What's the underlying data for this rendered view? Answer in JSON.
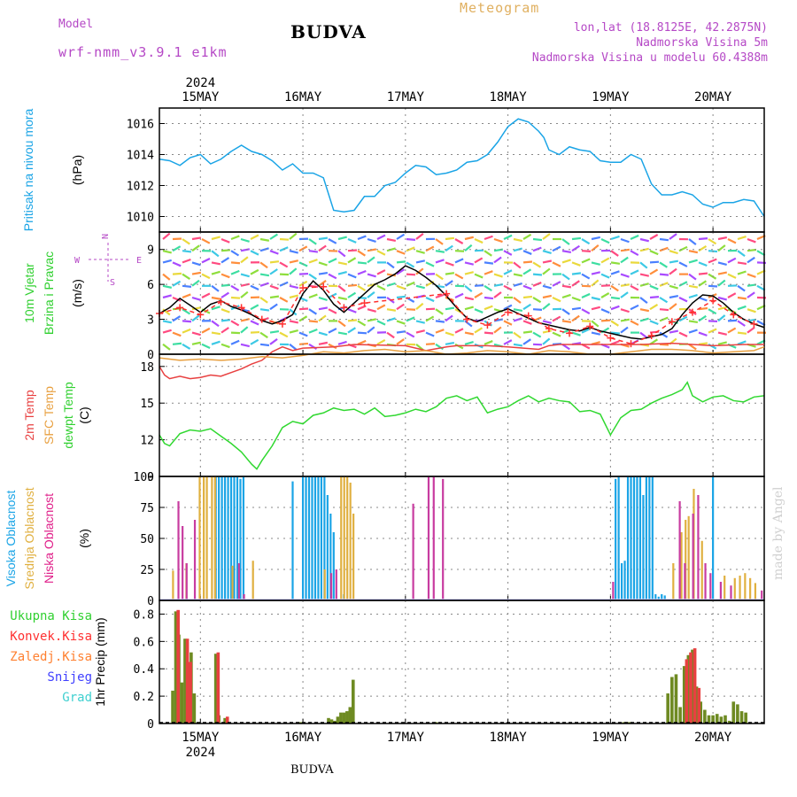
{
  "header": {
    "model_label": "Model",
    "model_name": "wrf-nmm_v3.9.1 e1km",
    "station": "BUDVA",
    "chart_title": "Meteogram",
    "coords": "lon,lat (18.8125E, 42.2875N)",
    "altitude": "Nadmorska Visina 5m",
    "model_altitude": "Nadmorska Visina u modelu 60.4388m"
  },
  "footer": {
    "station": "BUDVA",
    "credit": "made by Angel"
  },
  "chart_data": [
    {
      "id": "pressure",
      "type": "line",
      "ylabel_lines": [
        "Pritisak na nivou mora"
      ],
      "unit": "(hPa)",
      "ylim": [
        1009,
        1017
      ],
      "yticks": [
        1010,
        1012,
        1014,
        1016
      ],
      "x_range": [
        14.6,
        20.5
      ],
      "x_ticks": [
        "15MAY",
        "16MAY",
        "17MAY",
        "18MAY",
        "19MAY",
        "20MAY"
      ],
      "year": "2024",
      "series": [
        {
          "color": "#1aa4e6",
          "x": [
            14.6,
            14.7,
            14.8,
            14.9,
            15.0,
            15.1,
            15.2,
            15.3,
            15.4,
            15.5,
            15.6,
            15.7,
            15.8,
            15.9,
            16.0,
            16.1,
            16.2,
            16.3,
            16.4,
            16.5,
            16.6,
            16.7,
            16.8,
            16.9,
            17.0,
            17.1,
            17.2,
            17.3,
            17.4,
            17.5,
            17.6,
            17.7,
            17.8,
            17.9,
            18.0,
            18.1,
            18.2,
            18.3,
            18.35,
            18.4,
            18.5,
            18.6,
            18.7,
            18.8,
            18.9,
            19.0,
            19.1,
            19.2,
            19.3,
            19.4,
            19.5,
            19.6,
            19.7,
            19.8,
            19.9,
            20.0,
            20.1,
            20.2,
            20.3,
            20.4,
            20.5
          ],
          "y": [
            1013.7,
            1013.6,
            1013.3,
            1013.8,
            1014.0,
            1013.4,
            1013.7,
            1014.2,
            1014.6,
            1014.2,
            1014.0,
            1013.6,
            1013.0,
            1013.4,
            1012.8,
            1012.8,
            1012.5,
            1010.4,
            1010.3,
            1010.4,
            1011.3,
            1011.3,
            1012.0,
            1012.2,
            1012.8,
            1013.3,
            1013.2,
            1012.7,
            1012.8,
            1013.0,
            1013.5,
            1013.6,
            1014.0,
            1014.8,
            1015.8,
            1016.3,
            1016.1,
            1015.5,
            1015.1,
            1014.3,
            1014.0,
            1014.5,
            1014.3,
            1014.2,
            1013.6,
            1013.5,
            1013.5,
            1014.0,
            1013.7,
            1012.1,
            1011.4,
            1011.4,
            1011.6,
            1011.4,
            1010.8,
            1010.6,
            1010.9,
            1010.9,
            1011.1,
            1011.0,
            1010.0
          ]
        }
      ]
    },
    {
      "id": "wind",
      "type": "line",
      "ylabel_lines": [
        "10m Vjetar",
        "Brzina i Pravac"
      ],
      "unit": "(m/s)",
      "compass": "N, E, S, W",
      "ylim": [
        0,
        10.5
      ],
      "yticks": [
        0,
        3,
        6,
        9
      ],
      "x_range": [
        14.6,
        20.5
      ],
      "series": [
        {
          "name": "speed",
          "color": "#000000",
          "x": [
            14.6,
            14.7,
            14.8,
            14.9,
            15.0,
            15.1,
            15.2,
            15.3,
            15.4,
            15.5,
            15.6,
            15.7,
            15.8,
            15.9,
            16.0,
            16.1,
            16.2,
            16.3,
            16.4,
            16.5,
            16.6,
            16.7,
            16.8,
            16.9,
            17.0,
            17.1,
            17.2,
            17.3,
            17.4,
            17.5,
            17.6,
            17.7,
            17.8,
            17.9,
            18.0,
            18.1,
            18.2,
            18.3,
            18.4,
            18.5,
            18.6,
            18.7,
            18.8,
            18.9,
            19.0,
            19.1,
            19.2,
            19.3,
            19.4,
            19.5,
            19.6,
            19.7,
            19.8,
            19.9,
            20.0,
            20.1,
            20.2,
            20.3,
            20.4,
            20.5
          ],
          "y": [
            3.5,
            4.0,
            4.8,
            4.2,
            3.6,
            4.3,
            4.6,
            4.1,
            3.8,
            3.4,
            2.9,
            2.6,
            2.9,
            3.4,
            5.2,
            6.3,
            5.5,
            4.3,
            3.6,
            4.4,
            5.2,
            6.0,
            6.4,
            6.9,
            7.6,
            7.2,
            6.6,
            5.9,
            5.0,
            4.0,
            3.1,
            2.8,
            3.2,
            3.6,
            3.9,
            3.5,
            3.1,
            2.7,
            2.5,
            2.3,
            2.1,
            2.0,
            2.3,
            2.0,
            1.8,
            1.6,
            1.4,
            1.3,
            1.5,
            1.7,
            2.2,
            3.4,
            4.4,
            5.1,
            5.0,
            4.4,
            3.6,
            3.0,
            2.6,
            2.3
          ]
        },
        {
          "name": "gust",
          "color": "#ff3030",
          "x": [
            14.6,
            14.8,
            15.0,
            15.2,
            15.4,
            15.6,
            15.8,
            16.0,
            16.2,
            16.4,
            16.6,
            17.4,
            17.6,
            17.8,
            18.0,
            18.2,
            18.4,
            18.6,
            18.8,
            19.0,
            19.2,
            19.4,
            19.6,
            19.8,
            20.0,
            20.2,
            20.4
          ],
          "y": [
            3.5,
            4.0,
            3.4,
            4.5,
            4.0,
            3.0,
            2.6,
            5.7,
            5.8,
            4.0,
            4.4,
            5.2,
            3.0,
            2.5,
            3.6,
            3.3,
            2.2,
            1.8,
            2.4,
            1.4,
            0.9,
            1.6,
            2.8,
            3.6,
            4.6,
            3.4,
            2.6
          ]
        }
      ]
    },
    {
      "id": "temperature",
      "type": "line",
      "ylabel_lines": [
        "2m Temp",
        "SFC Temp",
        "dewpt Temp"
      ],
      "unit": "(C)",
      "ylim": [
        9,
        19
      ],
      "yticks": [
        9,
        12,
        15,
        18
      ],
      "x_range": [
        14.6,
        20.5
      ],
      "series": [
        {
          "name": "2m Temp",
          "color": "#e84040",
          "x": [
            14.6,
            14.65,
            14.7,
            14.8,
            14.9,
            15.0,
            15.1,
            15.2,
            15.3,
            15.4,
            15.5,
            15.6,
            15.7,
            15.8,
            15.9,
            16.0,
            16.3,
            16.5,
            17.0,
            17.2,
            17.4,
            17.5,
            17.8,
            18.0,
            18.3,
            18.4,
            18.5,
            19.0,
            19.3,
            19.6,
            20.0,
            20.3,
            20.5
          ],
          "y": [
            18.0,
            17.3,
            17.0,
            17.2,
            17.0,
            17.1,
            17.3,
            17.2,
            17.5,
            17.8,
            18.2,
            18.5,
            19.2,
            19.6,
            19.3,
            19.5,
            19.6,
            19.8,
            19.7,
            19.3,
            19.6,
            19.7,
            19.7,
            19.6,
            19.4,
            19.7,
            19.8,
            19.8,
            19.8,
            19.9,
            19.7,
            19.8,
            19.8
          ]
        },
        {
          "name": "SFC Temp",
          "color": "#e8a040",
          "x": [
            14.6,
            14.8,
            15.0,
            15.2,
            15.4,
            15.6,
            15.8,
            16.0,
            16.2,
            16.4,
            16.6,
            16.8,
            17.0,
            17.2,
            17.4,
            17.6,
            17.8,
            18.0,
            18.2,
            18.4,
            18.6,
            18.8,
            19.0,
            19.2,
            19.4,
            19.6,
            19.8,
            20.0,
            20.2,
            20.4,
            20.5
          ],
          "y": [
            18.7,
            18.5,
            18.6,
            18.5,
            18.6,
            18.8,
            18.7,
            18.9,
            19.2,
            19.1,
            19.3,
            19.4,
            19.2,
            19.3,
            19.0,
            19.1,
            19.3,
            19.2,
            19.0,
            19.3,
            19.2,
            19.0,
            19.0,
            19.2,
            19.4,
            19.4,
            19.3,
            19.1,
            19.2,
            19.3,
            19.6
          ]
        },
        {
          "name": "dewpt Temp",
          "color": "#30d830",
          "x": [
            14.6,
            14.65,
            14.7,
            14.8,
            14.9,
            15.0,
            15.1,
            15.2,
            15.3,
            15.4,
            15.5,
            15.55,
            15.6,
            15.7,
            15.8,
            15.9,
            16.0,
            16.1,
            16.2,
            16.3,
            16.4,
            16.5,
            16.6,
            16.7,
            16.8,
            16.9,
            17.0,
            17.1,
            17.2,
            17.3,
            17.4,
            17.5,
            17.6,
            17.7,
            17.8,
            17.9,
            18.0,
            18.1,
            18.2,
            18.3,
            18.4,
            18.5,
            18.6,
            18.7,
            18.8,
            18.9,
            19.0,
            19.1,
            19.2,
            19.3,
            19.4,
            19.5,
            19.6,
            19.7,
            19.75,
            19.8,
            19.9,
            20.0,
            20.1,
            20.2,
            20.3,
            20.4,
            20.5
          ],
          "y": [
            12.4,
            11.7,
            11.5,
            12.5,
            12.8,
            12.7,
            12.9,
            12.3,
            11.7,
            11.0,
            10.0,
            9.6,
            10.3,
            11.5,
            13.0,
            13.5,
            13.3,
            14.0,
            14.2,
            14.6,
            14.4,
            14.5,
            14.1,
            14.6,
            13.9,
            14.0,
            14.2,
            14.5,
            14.3,
            14.7,
            15.4,
            15.6,
            15.2,
            15.5,
            14.2,
            14.5,
            14.7,
            15.2,
            15.6,
            15.1,
            15.4,
            15.2,
            15.1,
            14.3,
            14.4,
            14.1,
            12.4,
            13.8,
            14.4,
            14.5,
            15.0,
            15.4,
            15.7,
            16.1,
            16.7,
            15.6,
            15.1,
            15.5,
            15.6,
            15.2,
            15.1,
            15.5,
            15.6
          ]
        }
      ]
    },
    {
      "id": "clouds",
      "type": "bar",
      "ylabel_lines": [
        "Visoka Oblacnost",
        "Srednja Oblacnost",
        "Niska Oblacnost"
      ],
      "unit": "(%)",
      "ylim": [
        0,
        100
      ],
      "yticks": [
        0,
        25,
        50,
        75,
        100
      ],
      "x_range": [
        14.6,
        20.5
      ],
      "series": [
        {
          "name": "Visoka Oblacnost",
          "color": "#1aa4e6",
          "x": [
            15.15,
            15.18,
            15.21,
            15.24,
            15.27,
            15.3,
            15.33,
            15.36,
            15.39,
            15.42,
            15.9,
            16.0,
            16.03,
            16.06,
            16.09,
            16.12,
            16.15,
            16.18,
            16.21,
            16.24,
            16.27,
            16.3,
            16.4,
            19.05,
            19.08,
            19.11,
            19.14,
            19.17,
            19.2,
            19.23,
            19.26,
            19.29,
            19.32,
            19.35,
            19.38,
            19.41,
            19.44,
            19.47,
            19.5,
            19.53,
            20.0
          ],
          "y": [
            100,
            100,
            100,
            100,
            100,
            100,
            100,
            100,
            98,
            100,
            96,
            100,
            100,
            100,
            100,
            100,
            100,
            100,
            100,
            85,
            70,
            55,
            5,
            98,
            100,
            30,
            32,
            100,
            100,
            100,
            100,
            100,
            85,
            100,
            100,
            100,
            5,
            3,
            5,
            4,
            100
          ]
        },
        {
          "name": "Srednja Oblacnost",
          "color": "#e0b040",
          "x": [
            14.72,
            14.85,
            14.98,
            15.02,
            15.05,
            15.1,
            15.13,
            15.3,
            15.5,
            16.2,
            16.36,
            16.39,
            16.42,
            16.45,
            16.48,
            19.6,
            19.68,
            19.72,
            19.75,
            19.8,
            19.88,
            20.1,
            20.2,
            20.25,
            20.3,
            20.35,
            20.4
          ],
          "y": [
            24,
            30,
            100,
            100,
            100,
            100,
            100,
            28,
            32,
            25,
            100,
            100,
            100,
            95,
            70,
            30,
            55,
            65,
            68,
            90,
            48,
            20,
            18,
            20,
            22,
            18,
            14
          ]
        },
        {
          "name": "Niska Oblacnost",
          "color": "#c83ca0",
          "x": [
            14.76,
            14.8,
            14.84,
            14.92,
            15.35,
            15.4,
            16.25,
            16.3,
            17.05,
            17.2,
            17.25,
            17.34,
            19.0,
            19.65,
            19.7,
            19.78,
            19.83,
            19.9,
            19.95,
            20.05,
            20.15,
            20.45
          ],
          "y": [
            80,
            60,
            30,
            65,
            30,
            5,
            22,
            25,
            78,
            100,
            100,
            98,
            15,
            80,
            30,
            70,
            85,
            30,
            22,
            15,
            12,
            8
          ]
        }
      ]
    },
    {
      "id": "precip",
      "type": "bar",
      "ylabel_lines": [
        "Ukupna Kisa",
        "Konvek.Kisa",
        "Zaledj.Kisa",
        "Snijeg",
        "Grad"
      ],
      "unit": "1hr Precip (mm)",
      "ylim": [
        0,
        0.9
      ],
      "yticks": [
        0,
        0.2,
        0.4,
        0.6,
        0.8
      ],
      "x_range": [
        14.6,
        20.5
      ],
      "x_ticks": [
        "15MAY",
        "16MAY",
        "17MAY",
        "18MAY",
        "19MAY",
        "20MAY"
      ],
      "year": "2024",
      "legend_colors": [
        "#30d030",
        "#ff3030",
        "#ff8030",
        "#4040ff",
        "#40d0d0"
      ],
      "series": [
        {
          "name": "Ukupna Kisa",
          "color": "#6e8a22",
          "x": [
            14.73,
            14.76,
            14.79,
            14.82,
            14.85,
            14.88,
            14.91,
            14.94,
            14.97,
            15.12,
            15.15,
            15.18,
            15.24,
            15.95,
            15.98,
            16.01,
            16.04,
            16.07,
            16.1,
            16.13,
            16.16,
            16.19,
            16.22,
            16.25,
            16.28,
            16.31,
            16.34,
            16.37,
            16.4,
            16.43,
            16.46,
            16.49,
            17.3,
            17.33,
            19.1,
            19.13,
            19.16,
            19.19,
            19.56,
            19.6,
            19.64,
            19.68,
            19.72,
            19.76,
            19.8,
            19.84,
            19.88,
            19.92,
            19.96,
            20.0,
            20.04,
            20.08,
            20.12,
            20.16,
            20.2,
            20.24,
            20.28,
            20.32,
            20.36,
            20.4,
            20.44,
            20.48
          ],
          "y": [
            0.24,
            0.82,
            0.65,
            0.3,
            0.62,
            0.45,
            0.52,
            0.22,
            0.0,
            0.0,
            0.51,
            0.06,
            0.04,
            0.01,
            0.01,
            0.0,
            0.0,
            0.0,
            0.0,
            0.0,
            0.0,
            0.0,
            0.0,
            0.04,
            0.03,
            0.02,
            0.05,
            0.08,
            0.08,
            0.09,
            0.12,
            0.32,
            0.01,
            0.0,
            0.0,
            0.01,
            0.01,
            0.01,
            0.22,
            0.34,
            0.36,
            0.12,
            0.42,
            0.5,
            0.54,
            0.27,
            0.16,
            0.1,
            0.06,
            0.06,
            0.07,
            0.05,
            0.06,
            0.02,
            0.16,
            0.14,
            0.09,
            0.08,
            0.0,
            0.0,
            0.0,
            0.0
          ]
        },
        {
          "name": "Konvek.Kisa",
          "color": "#e84040",
          "x": [
            14.77,
            14.86,
            14.89,
            15.16,
            15.25,
            19.73,
            19.77,
            19.81,
            19.85
          ],
          "y": [
            0.83,
            0.62,
            0.45,
            0.52,
            0.05,
            0.47,
            0.52,
            0.55,
            0.26
          ]
        }
      ]
    }
  ]
}
